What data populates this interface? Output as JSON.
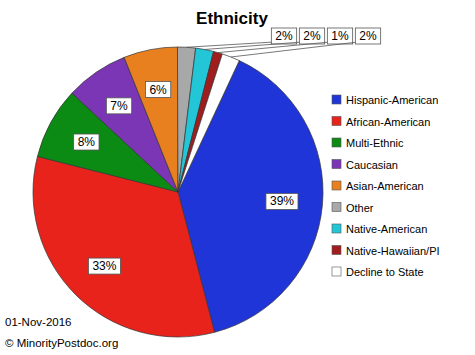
{
  "chart_data": {
    "type": "pie",
    "title": "Ethnicity",
    "categories": [
      "Hispanic-American",
      "African-American",
      "Multi-Ethnic",
      "Caucasian",
      "Asian-American",
      "Other",
      "Native-American",
      "Native-Hawaiian/PI",
      "Decline to State"
    ],
    "values": [
      39,
      33,
      8,
      7,
      6,
      2,
      2,
      1,
      2
    ],
    "value_labels": [
      "39%",
      "33%",
      "8%",
      "7%",
      "6%",
      "2%",
      "2%",
      "1%",
      "2%"
    ],
    "colors": [
      "#1f35d8",
      "#e8231c",
      "#0b8a14",
      "#7b36b6",
      "#e8801f",
      "#a8a8a8",
      "#22c6d6",
      "#a11d1d",
      "#ffffff"
    ],
    "data_labels": true,
    "legend": "right",
    "annotations": [
      "01-Nov-2016",
      "© MinorityPostdoc.org"
    ]
  }
}
